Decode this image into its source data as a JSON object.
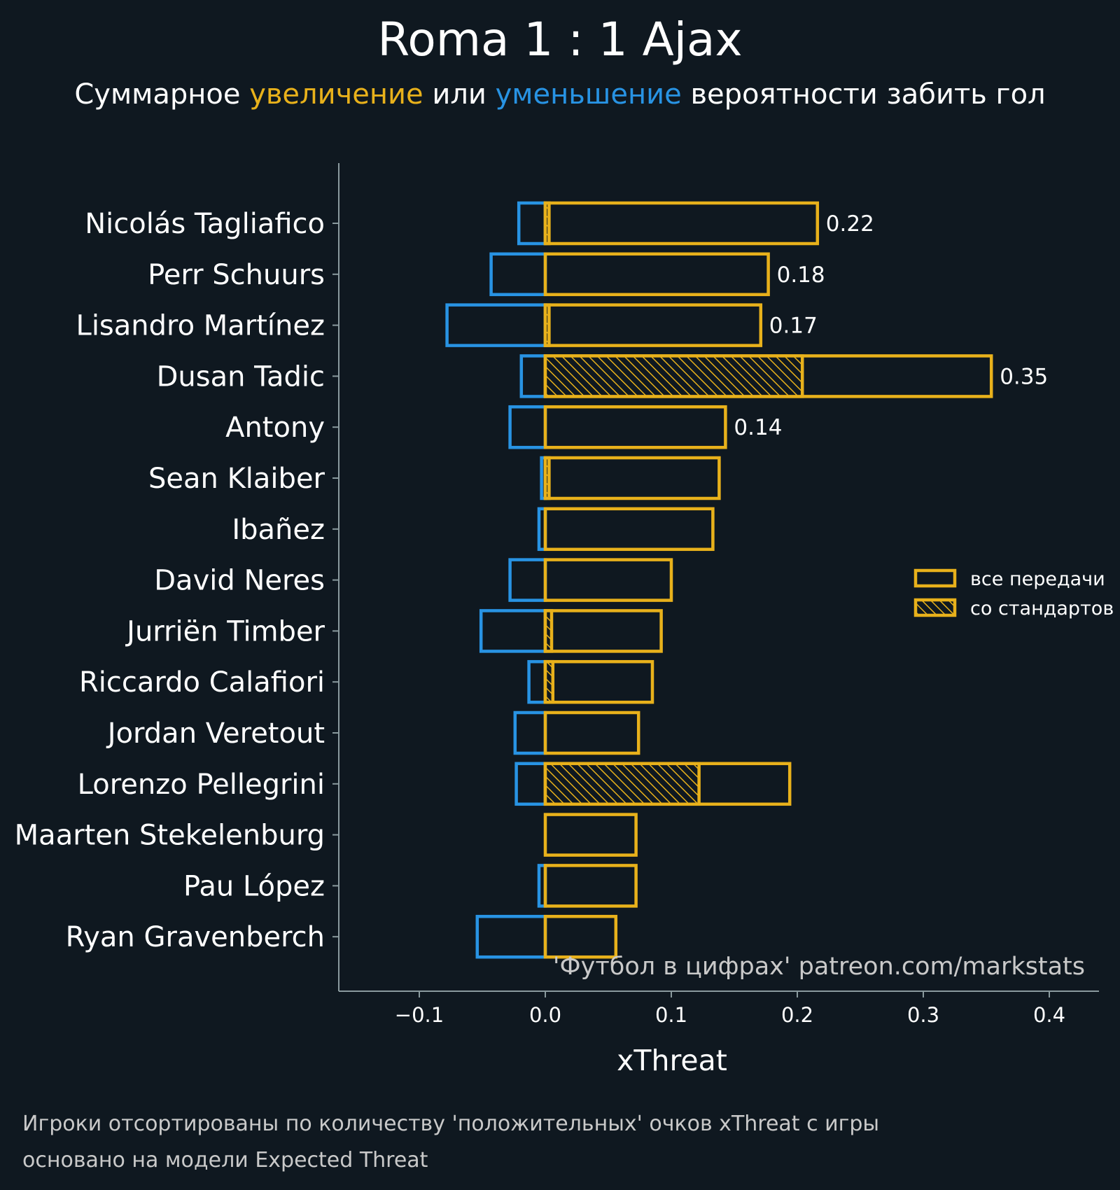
{
  "title": "Roma 1 : 1 Ajax",
  "subtitle": {
    "before": "Суммарное ",
    "up_word": "увеличение",
    "middle": " или ",
    "down_word": "уменьшение",
    "after": " вероятности забить гол"
  },
  "colors": {
    "background": "#0f1820",
    "increase": "#e8b11b",
    "decrease": "#2893e3",
    "axis": "#8a9a9e"
  },
  "chart_data": {
    "type": "bar",
    "orientation": "horizontal",
    "title": "Roma 1 : 1 Ajax",
    "xlabel": "xThreat",
    "ylabel": "",
    "xlim": [
      -0.165,
      0.44
    ],
    "xticks": [
      -0.1,
      0.0,
      0.1,
      0.2,
      0.3,
      0.4
    ],
    "xtick_labels": [
      "−0.1",
      "0.0",
      "0.1",
      "0.2",
      "0.3",
      "0.4"
    ],
    "grid": false,
    "legend_position": "right",
    "categories": [
      "Nicolás Tagliafico",
      "Perr Schuurs",
      "Lisandro Martínez",
      "Dusan Tadic",
      "Antony",
      "Sean Klaiber",
      "Ibañez",
      "David Neres",
      "Jurriën Timber",
      "Riccardo Calafiori",
      "Jordan Veretout",
      "Lorenzo Pellegrini",
      "Maarten Stekelenburg",
      "Pau López",
      "Ryan Gravenberch"
    ],
    "series": [
      {
        "name": "все передачи",
        "kind": "positive",
        "values": [
          0.216,
          0.177,
          0.171,
          0.354,
          0.143,
          0.138,
          0.133,
          0.1,
          0.092,
          0.085,
          0.074,
          0.194,
          0.072,
          0.072,
          0.056
        ]
      },
      {
        "name": "со стандартов",
        "kind": "positive-set-pieces",
        "values": [
          0.003,
          0.0,
          0.003,
          0.204,
          0.0,
          0.003,
          0.0,
          0.0,
          0.005,
          0.006,
          0.0,
          0.122,
          0.0,
          0.0,
          0.0
        ]
      },
      {
        "name": "negative",
        "kind": "negative",
        "values": [
          -0.021,
          -0.043,
          -0.078,
          -0.019,
          -0.028,
          -0.003,
          -0.005,
          -0.028,
          -0.051,
          -0.013,
          -0.024,
          -0.023,
          0.0,
          -0.005,
          -0.054
        ]
      }
    ],
    "value_labels": [
      {
        "player_index": 0,
        "text": "0.22"
      },
      {
        "player_index": 1,
        "text": "0.18"
      },
      {
        "player_index": 2,
        "text": "0.17"
      },
      {
        "player_index": 3,
        "text": "0.35"
      },
      {
        "player_index": 4,
        "text": "0.14"
      }
    ],
    "legend": [
      "все передачи",
      "со стандартов"
    ]
  },
  "watermark": "'Футбол в цифрах' patreon.com/markstats",
  "footnote": {
    "line1": "Игроки отсортированы по количеству 'положительных' очков xThreat с игры",
    "line2": "основано на модели Expected Threat"
  }
}
